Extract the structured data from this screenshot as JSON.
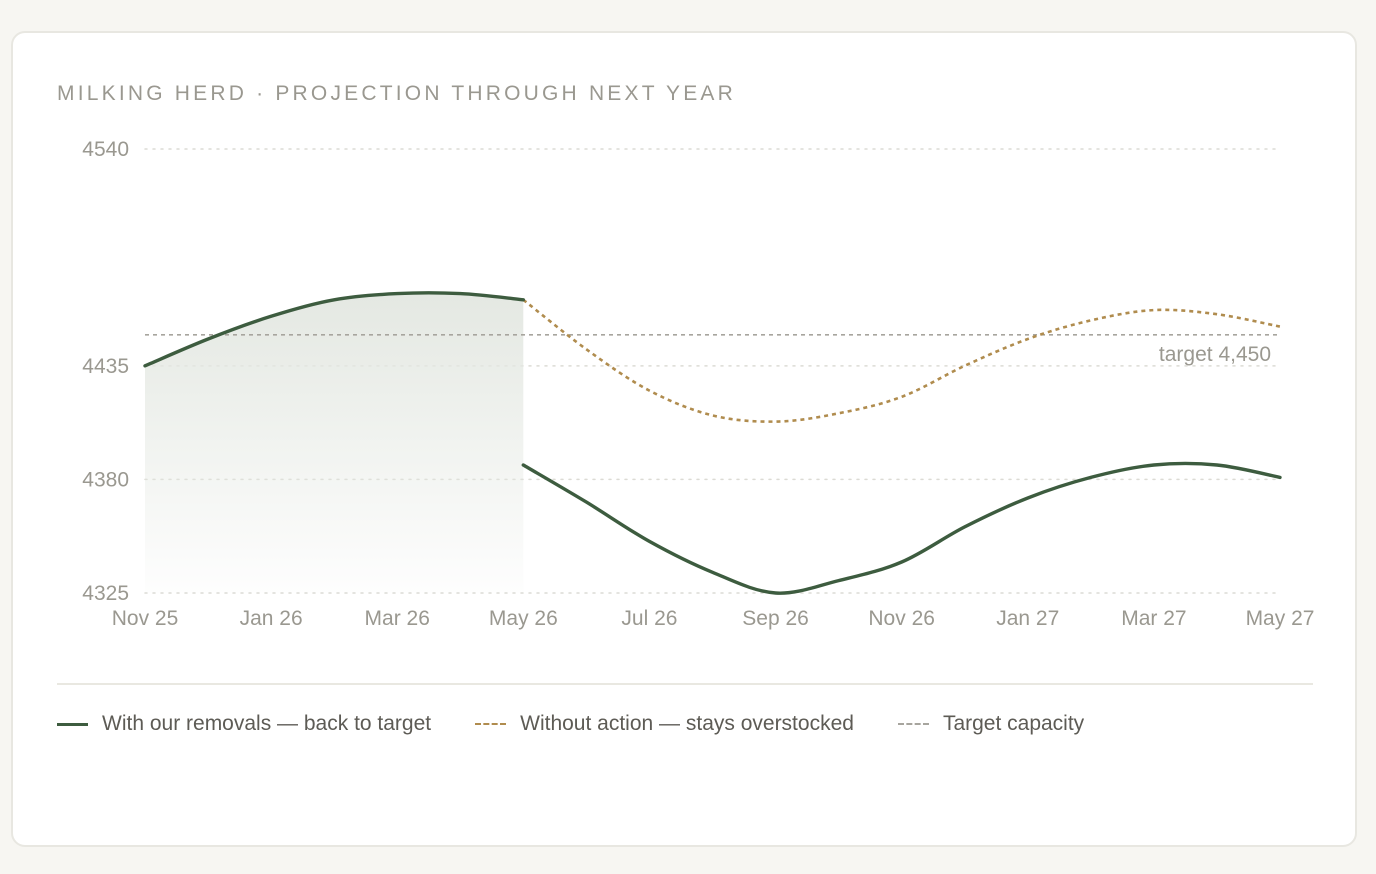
{
  "title": "MILKING HERD · PROJECTION THROUGH NEXT YEAR",
  "colors": {
    "with_removals": "#3d5c3f",
    "without_action": "#b08c4e",
    "target": "#a7a59e",
    "grid": "#dcdbd5",
    "tick_text": "#9a9890",
    "fill_top": "#e4e8e2"
  },
  "chart_data": {
    "type": "line",
    "ylim": [
      4325,
      4540
    ],
    "xlim": [
      "Nov 25",
      "May 27"
    ],
    "y_ticks": [
      "4540",
      "4435",
      "4380",
      "4325"
    ],
    "x_ticks": [
      "Nov 25",
      "Jan 26",
      "Mar 26",
      "May 26",
      "Jul 26",
      "Sep 26",
      "Nov 26",
      "Jan 27",
      "Mar 27",
      "May 27"
    ],
    "grid": "horizontal dotted",
    "series": [
      {
        "name": "With our removals — back to target",
        "style": "solid",
        "fill": "shaded history through May 26",
        "x": [
          "Nov 25",
          "Dec 25",
          "Jan 26",
          "Feb 26",
          "Mar 26",
          "Apr 26",
          "May 26",
          "May 26",
          "Jun 26",
          "Jul 26",
          "Aug 26",
          "Sep 26",
          "Oct 26",
          "Nov 26",
          "Dec 26",
          "Jan 27",
          "Feb 27",
          "Mar 27",
          "Apr 27",
          "May 27"
        ],
        "values": [
          4435,
          4448,
          4459,
          4467,
          4470,
          4470,
          4467,
          4387,
          4369,
          4350,
          4335,
          4325,
          4331,
          4340,
          4357,
          4371,
          4381,
          4387,
          4387,
          4381
        ]
      },
      {
        "name": "Without action — stays overstocked",
        "style": "dashed",
        "x": [
          "May 26",
          "Jun 26",
          "Jul 26",
          "Aug 26",
          "Sep 26",
          "Oct 26",
          "Nov 26",
          "Dec 26",
          "Jan 27",
          "Feb 27",
          "Mar 27",
          "Apr 27",
          "May 27"
        ],
        "values": [
          4467,
          4443,
          4423,
          4411,
          4408,
          4412,
          4420,
          4435,
          4448,
          4457,
          4462,
          4460,
          4454
        ]
      }
    ],
    "reference_line": {
      "name": "Target capacity",
      "value": 4450,
      "label": "target 4,450"
    }
  },
  "legend": [
    {
      "label": "With our removals — back to target",
      "style": "solid"
    },
    {
      "label": "Without action — stays overstocked",
      "style": "dashed-gold"
    },
    {
      "label": "Target capacity",
      "style": "dashed-grey"
    }
  ]
}
